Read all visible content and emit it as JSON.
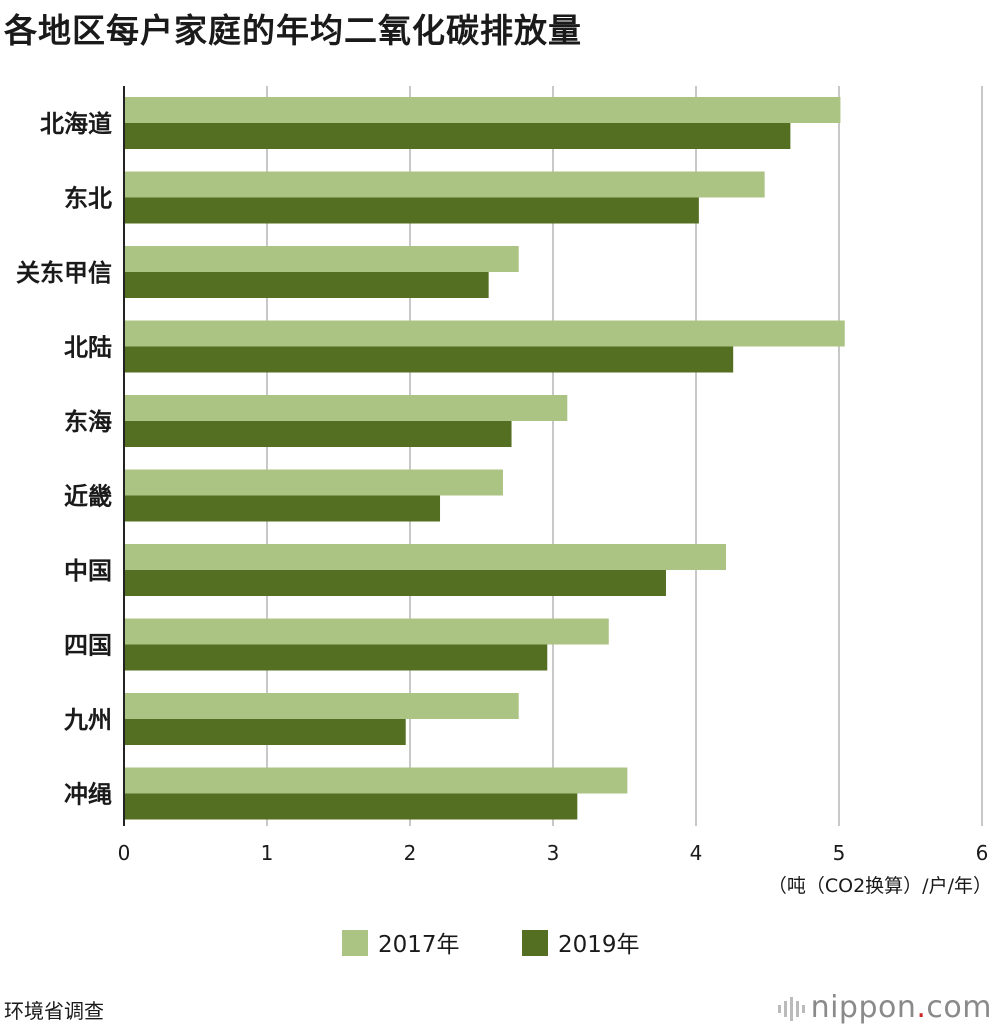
{
  "title": "各地区每户家庭的年均二氧化碳排放量",
  "source": "环境省调查",
  "logo": {
    "name": "nippon",
    "dot": ".",
    "tld": "com"
  },
  "colors": {
    "series_2017": "#abc383",
    "series_2019": "#556f22",
    "grid": "#c8c8c8",
    "axis": "#222222"
  },
  "chart_data": {
    "type": "bar",
    "orientation": "horizontal",
    "categories": [
      "北海道",
      "东北",
      "关东甲信",
      "北陆",
      "东海",
      "近畿",
      "中国",
      "四国",
      "九州",
      "冲绳"
    ],
    "series": [
      {
        "name": "2017年",
        "values": [
          5.01,
          4.48,
          2.76,
          5.04,
          3.1,
          2.65,
          4.21,
          3.39,
          2.76,
          3.52
        ]
      },
      {
        "name": "2019年",
        "values": [
          4.66,
          4.02,
          2.55,
          4.26,
          2.71,
          2.21,
          3.79,
          2.96,
          1.97,
          3.17
        ]
      }
    ],
    "xlim": [
      0,
      6
    ],
    "xticks": [
      "0",
      "1",
      "2",
      "3",
      "4",
      "5",
      "6"
    ],
    "xlabel": "（吨（CO2换算）/户/年）",
    "legend_position": "bottom-center",
    "grid": true
  }
}
